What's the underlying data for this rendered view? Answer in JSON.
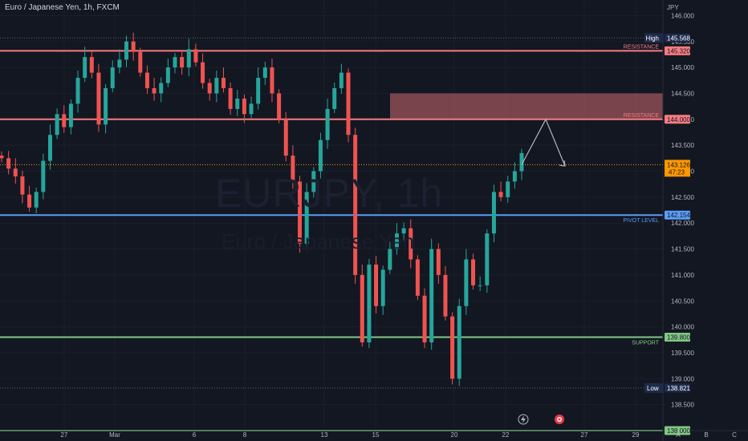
{
  "symbol_title": "Euro / Japanese Yen, 1h, FXCM",
  "watermark": {
    "symbol": "EURJPY, 1h",
    "description": "Euro / Japanese Yen"
  },
  "currency_label": "JPY",
  "price_axis": {
    "min": 138.0,
    "max": 146.3,
    "ticks": [
      "146.000",
      "145.500",
      "145.000",
      "144.500",
      "144.000",
      "143.500",
      "143.000",
      "142.500",
      "142.000",
      "141.500",
      "141.000",
      "140.500",
      "140.000",
      "139.500",
      "139.000",
      "138.500"
    ]
  },
  "time_axis": {
    "labels": [
      "27",
      "Mar",
      "6",
      "8",
      "13",
      "15",
      "20",
      "22",
      "27",
      "29"
    ]
  },
  "axis_buttons": [
    "A",
    "B",
    "C"
  ],
  "levels": [
    {
      "name": "RESISTANCE",
      "price": 145.32,
      "value_label": "145.320",
      "color": "#f77c80"
    },
    {
      "name": "RESISTANCE",
      "price": 144.0,
      "value_label": "144.000",
      "color": "#f77c80"
    },
    {
      "name": "PIVOT LEVEL",
      "price": 142.154,
      "value_label": "142.154",
      "color": "#5b9cf6"
    },
    {
      "name": "SUPPORT",
      "price": 139.8,
      "value_label": "139.800",
      "color": "#81c784"
    },
    {
      "name": "",
      "price": 138.0,
      "value_label": "138.000",
      "color": "#81c784"
    }
  ],
  "high": {
    "label": "High",
    "price": 145.568,
    "value_label": "145.568"
  },
  "low": {
    "label": "Low",
    "price": 138.821,
    "value_label": "138.821"
  },
  "current": {
    "price": 143.126,
    "value_label": "143.126",
    "countdown": "47:23",
    "color": "#ff9800"
  },
  "zone": {
    "top_price": 144.5,
    "bottom_price": 144.0
  },
  "colors": {
    "bull": "#26a69a",
    "bear": "#ef5350",
    "background": "#131722"
  },
  "chart_data": {
    "type": "line",
    "x_label_type": "date",
    "series": [
      {
        "values": [
          143.25,
          143.05,
          142.9,
          142.55,
          142.3,
          142.6,
          143.2,
          143.7,
          144.1,
          143.85,
          144.3,
          144.8,
          145.2,
          144.9,
          143.9,
          144.6,
          145.0,
          145.15,
          145.5,
          145.3,
          144.9,
          144.6,
          144.5,
          144.7,
          145.0,
          145.2,
          145.0,
          145.35,
          145.1,
          144.7,
          144.5,
          144.8,
          144.6,
          144.2,
          144.4,
          144.1,
          144.3,
          144.8,
          145.0,
          144.5,
          144.0,
          143.3,
          142.8,
          141.6,
          142.6,
          143.0,
          143.6,
          144.2,
          144.6,
          144.9,
          143.7,
          141.0,
          139.7,
          141.2,
          140.4,
          141.1,
          141.5,
          141.8,
          141.9,
          141.3,
          140.6,
          139.7,
          141.5,
          141.0,
          140.2,
          139.0,
          140.4,
          141.3,
          140.8,
          140.8,
          141.8,
          142.6,
          142.5,
          142.8,
          143.0,
          143.35
        ]
      }
    ],
    "projection": {
      "prices": [
        143.126,
        144.0,
        143.1
      ]
    },
    "ylim": [
      138.0,
      146.3
    ]
  }
}
